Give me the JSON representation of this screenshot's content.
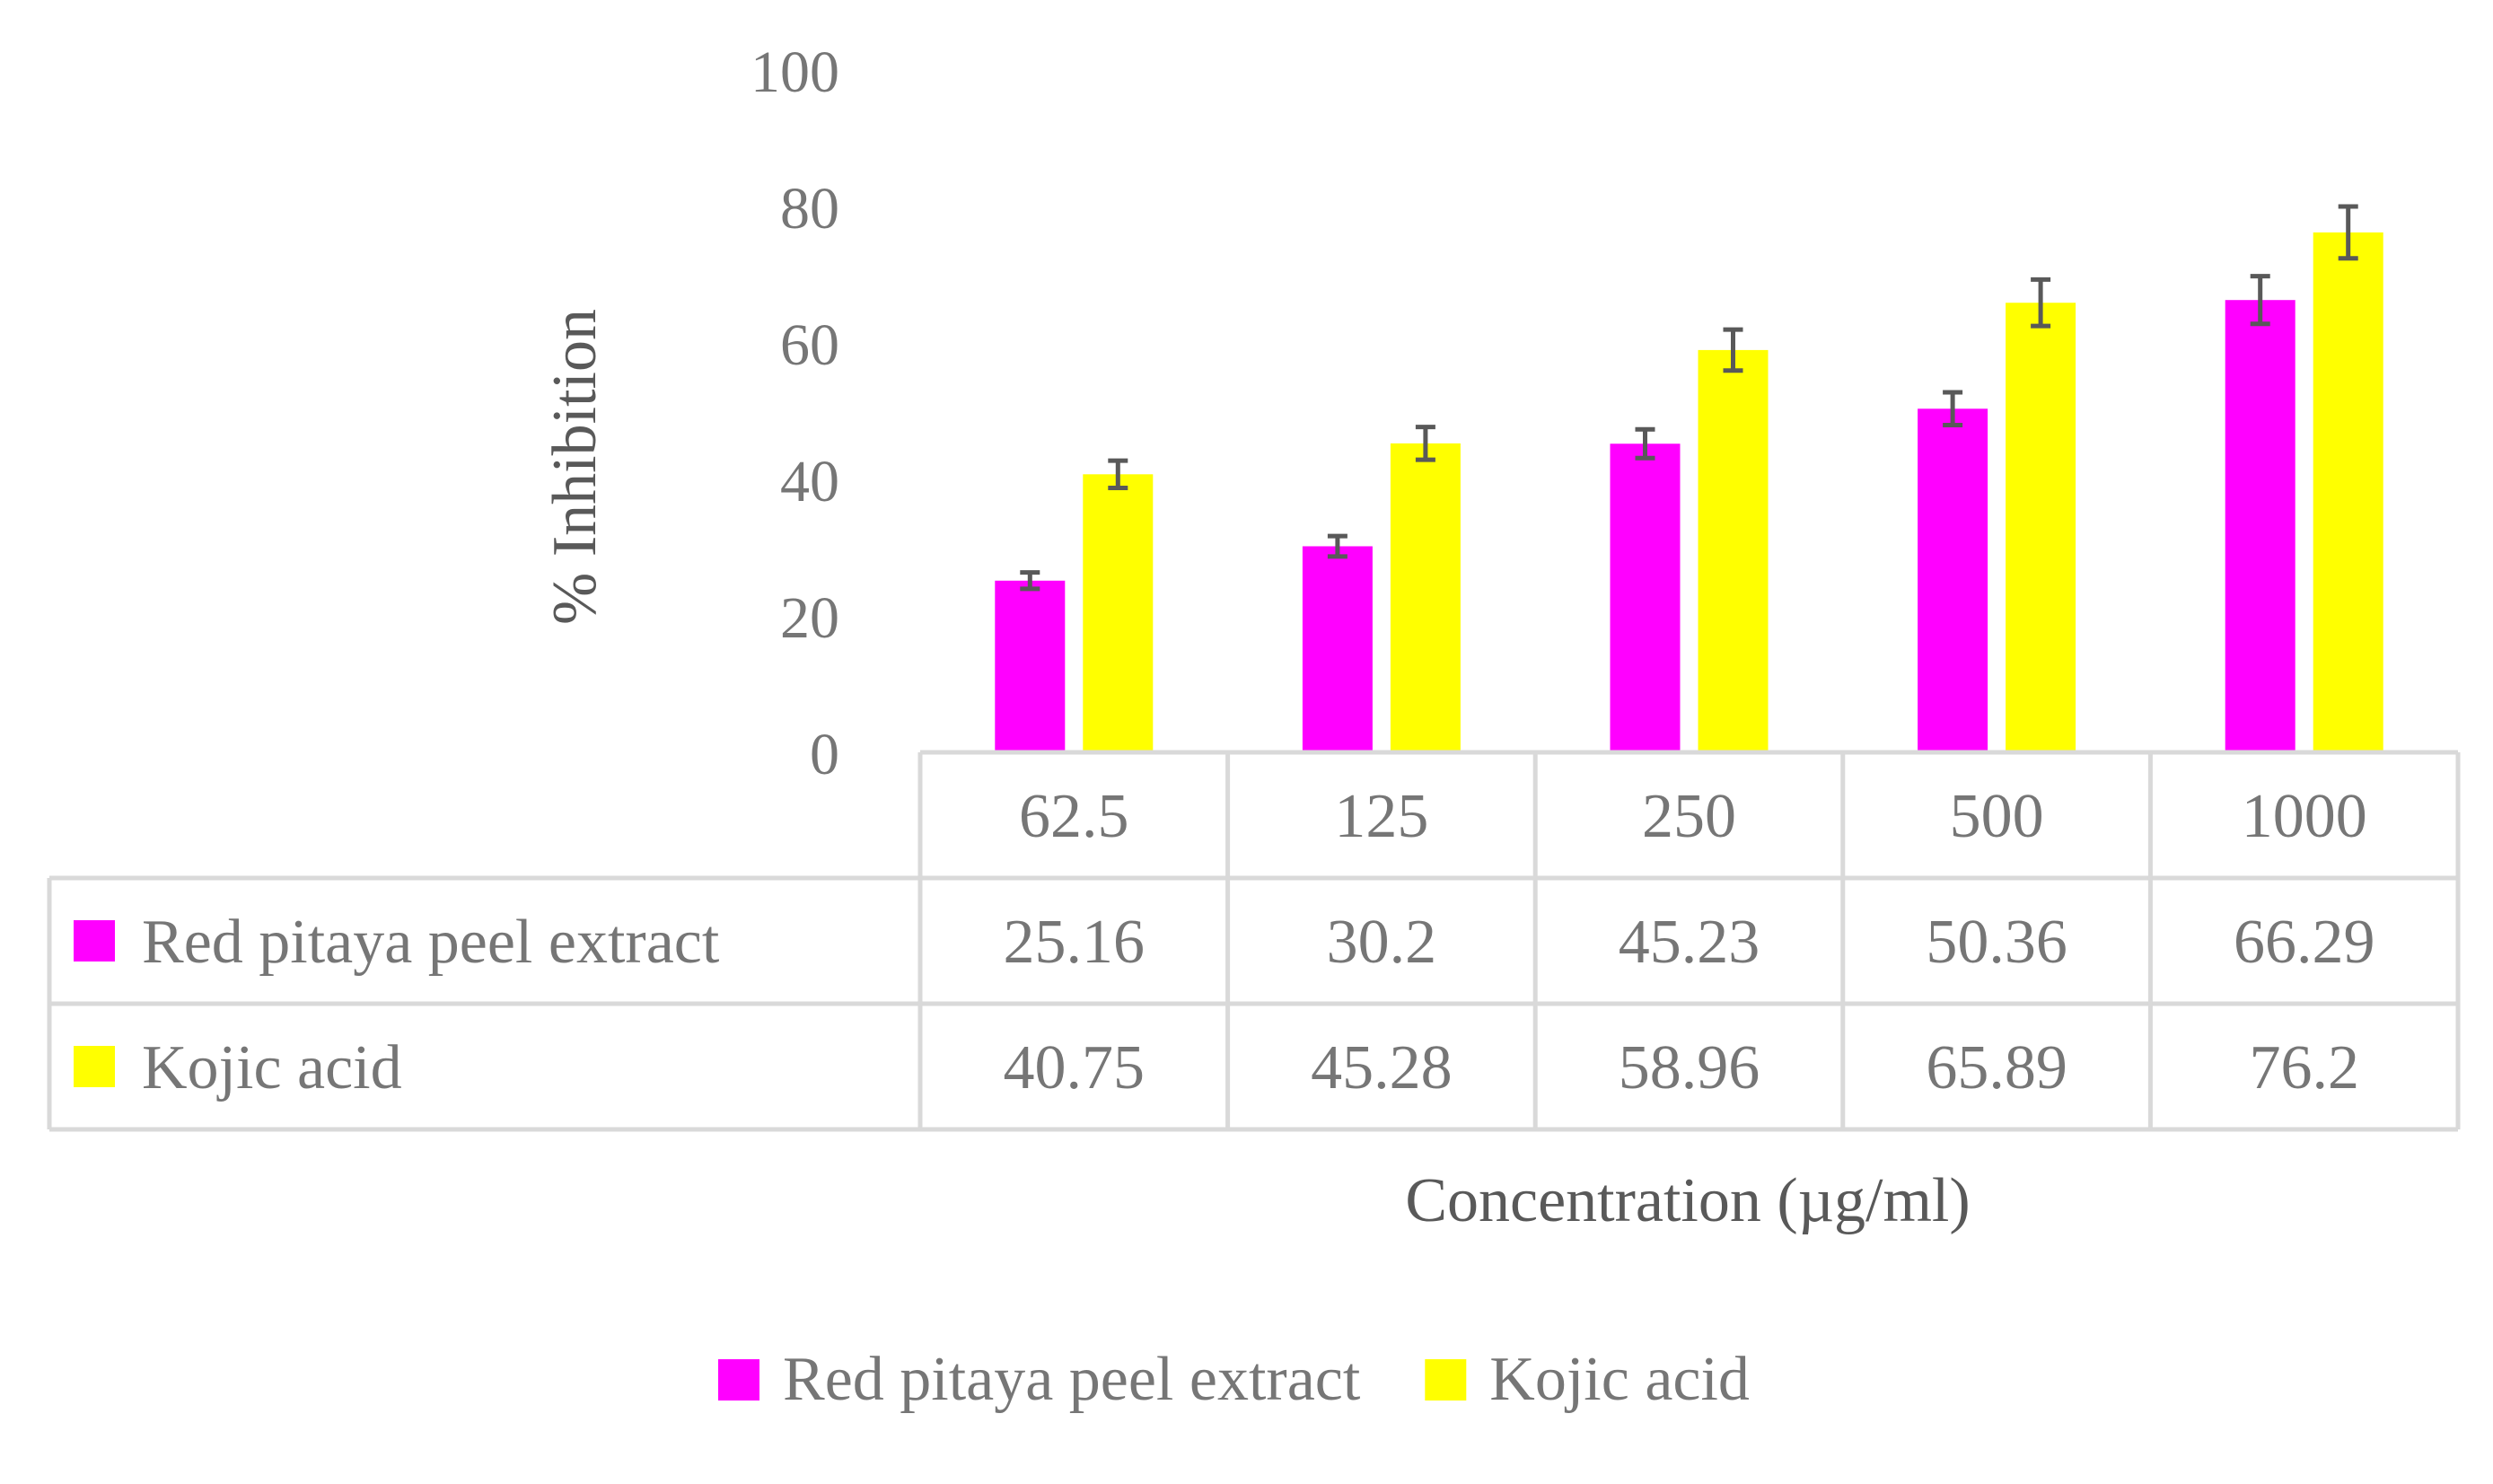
{
  "colors": {
    "series_1": "#ff00ff",
    "series_2": "#ffff00",
    "text": "#767676",
    "grid": "#d9d9d9",
    "error_bar": "#595959"
  },
  "chart_data": {
    "type": "bar",
    "title": "",
    "ylabel": "% Inhibition",
    "xlabel": "Concentration (µg/ml)",
    "ylim": [
      0,
      100
    ],
    "yticks": [
      "0",
      "20",
      "40",
      "60",
      "80",
      "100"
    ],
    "categories": [
      "62.5",
      "125",
      "250",
      "500",
      "1000"
    ],
    "series": [
      {
        "name": "Red pitaya peel extract",
        "values": [
          25.16,
          30.2,
          45.23,
          50.36,
          66.29
        ],
        "labels": [
          "25.16",
          "30.2",
          "45.23",
          "50.36",
          "66.29"
        ],
        "error": [
          1.2,
          1.5,
          2.1,
          2.4,
          3.5
        ]
      },
      {
        "name": "Kojic acid",
        "values": [
          40.75,
          45.28,
          58.96,
          65.89,
          76.2
        ],
        "labels": [
          "40.75",
          "45.28",
          "58.96",
          "65.89",
          "76.2"
        ],
        "error": [
          2.0,
          2.4,
          3.0,
          3.4,
          3.8
        ]
      }
    ],
    "data_table": true,
    "legend": "bottom-center"
  }
}
